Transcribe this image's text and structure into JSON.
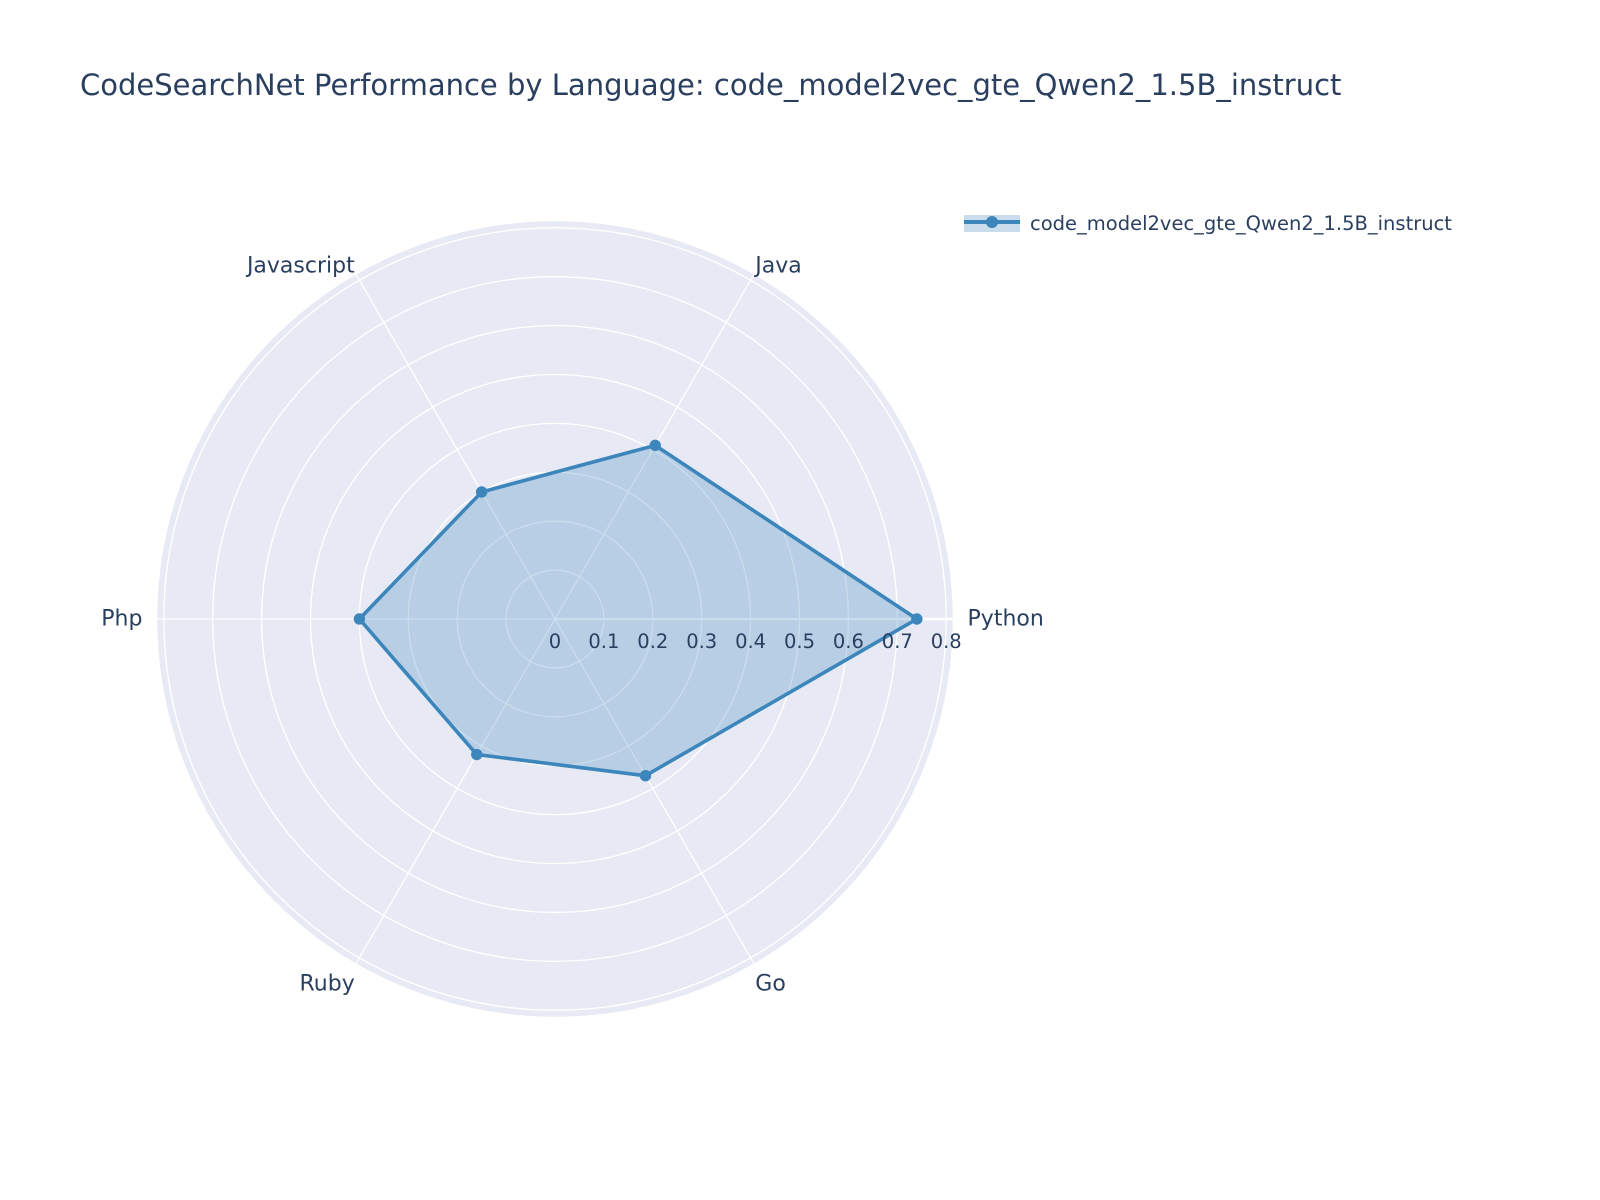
{
  "title": "CodeSearchNet Performance by Language: code_model2vec_gte_Qwen2_1.5B_instruct",
  "legend": {
    "series_label": "code_model2vec_gte_Qwen2_1.5B_instruct"
  },
  "chart_data": {
    "type": "radar",
    "title": "CodeSearchNet Performance by Language: code_model2vec_gte_Qwen2_1.5B_instruct",
    "categories": [
      "Python",
      "Java",
      "Javascript",
      "Php",
      "Ruby",
      "Go"
    ],
    "series": [
      {
        "name": "code_model2vec_gte_Qwen2_1.5B_instruct",
        "values": [
          0.74,
          0.41,
          0.3,
          0.4,
          0.32,
          0.37
        ]
      }
    ],
    "radial_ticks": [
      0,
      0.1,
      0.2,
      0.3,
      0.4,
      0.5,
      0.6,
      0.7,
      0.8
    ],
    "radial_range": [
      0,
      0.815
    ],
    "angle_start_deg": 0,
    "direction": "counterclockwise",
    "grid": "on",
    "legend_position": "top-right",
    "colors": {
      "line": "#3C86BC",
      "fill": "rgba(60,134,188,0.28)",
      "polar_background": "#E7EAF5",
      "gridline": "#FFFFFF",
      "text": "#2A3F5F"
    }
  }
}
